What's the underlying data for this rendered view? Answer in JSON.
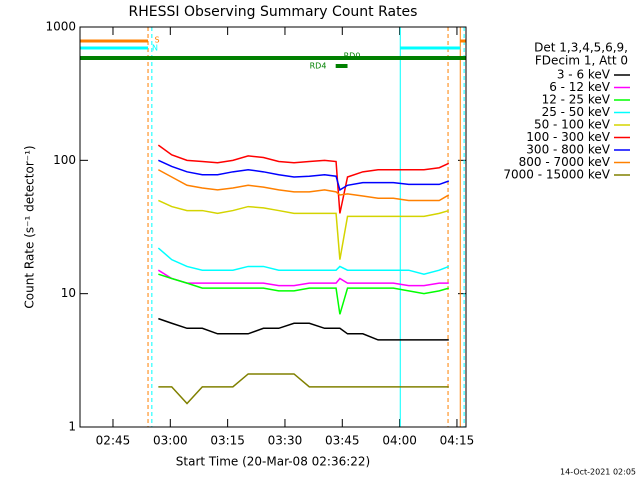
{
  "chart_data": {
    "type": "line",
    "title": "RHESSI Observing Summary Count Rates",
    "x_label": "Start Time (20-Mar-08 02:36:22)",
    "y_label": "Count Rate (s⁻¹ detector⁻¹)",
    "legend_header": [
      "Det 1,3,4,5,6,9,",
      "FDecim 1, Att 0"
    ],
    "timestamp": "14-Oct-2021 02:05",
    "log_y": true,
    "xlim": [
      0,
      101
    ],
    "xticks": [
      {
        "value": 8.63,
        "label": "02:45"
      },
      {
        "value": 23.63,
        "label": "03:00"
      },
      {
        "value": 38.63,
        "label": "03:15"
      },
      {
        "value": 53.63,
        "label": "03:30"
      },
      {
        "value": 68.63,
        "label": "03:45"
      },
      {
        "value": 83.63,
        "label": "04:00"
      },
      {
        "value": 98.63,
        "label": "04:15"
      }
    ],
    "ylim": [
      1,
      1000
    ],
    "yticks": [
      1,
      10,
      100,
      1000
    ],
    "x": [
      20.5,
      24,
      28,
      32,
      36,
      40,
      44,
      48,
      52,
      56,
      60,
      64,
      67,
      68,
      70,
      74,
      78,
      82,
      86,
      90,
      94,
      96.5
    ],
    "series": [
      {
        "name": "3 - 6 keV",
        "color": "#000000",
        "values": [
          6.5,
          6,
          5.5,
          5.5,
          5,
          5,
          5,
          5.5,
          5.5,
          6,
          6,
          5.5,
          5.5,
          5.5,
          5,
          5,
          4.5,
          4.5,
          4.5,
          4.5,
          4.5,
          4.5
        ]
      },
      {
        "name": "6 - 12 keV",
        "color": "#ff00ff",
        "values": [
          15,
          13,
          12,
          12,
          12,
          12,
          12,
          12,
          11.5,
          11.5,
          12,
          12,
          12,
          13,
          12,
          12,
          12,
          12,
          11.5,
          11.5,
          12,
          12
        ]
      },
      {
        "name": "12 - 25 keV",
        "color": "#00ff00",
        "values": [
          14,
          13,
          12,
          11,
          11,
          11,
          11,
          11,
          10.5,
          10.5,
          11,
          11,
          11,
          7,
          11,
          11,
          11,
          11,
          10.5,
          10,
          10.5,
          11
        ]
      },
      {
        "name": "25 - 50 keV",
        "color": "#00ffff",
        "values": [
          22,
          18,
          16,
          15,
          15,
          15,
          16,
          16,
          15,
          15,
          15,
          15,
          15,
          16,
          15,
          15,
          15,
          15,
          15,
          14,
          15,
          16
        ]
      },
      {
        "name": "50 - 100 keV",
        "color": "#d4d400",
        "values": [
          50,
          45,
          42,
          42,
          40,
          42,
          45,
          44,
          42,
          40,
          40,
          40,
          40,
          18,
          38,
          38,
          38,
          38,
          38,
          38,
          40,
          42
        ]
      },
      {
        "name": "100 - 300 keV",
        "color": "#ff0000",
        "values": [
          130,
          110,
          100,
          98,
          96,
          100,
          108,
          105,
          98,
          96,
          98,
          100,
          98,
          40,
          75,
          82,
          85,
          85,
          85,
          85,
          88,
          95
        ]
      },
      {
        "name": "300 - 800 keV",
        "color": "#0000ff",
        "values": [
          100,
          90,
          82,
          78,
          78,
          82,
          85,
          82,
          78,
          75,
          76,
          78,
          76,
          60,
          65,
          68,
          68,
          68,
          66,
          66,
          66,
          70
        ]
      },
      {
        "name": "800 - 7000 keV",
        "color": "#ff8000",
        "values": [
          85,
          75,
          65,
          62,
          60,
          62,
          65,
          63,
          60,
          58,
          58,
          60,
          58,
          55,
          56,
          54,
          52,
          52,
          50,
          50,
          50,
          55
        ]
      },
      {
        "name": "7000 - 15000 keV",
        "color": "#808000",
        "values": [
          2,
          2,
          1.5,
          2,
          2,
          2,
          2.5,
          2.5,
          2.5,
          2.5,
          2,
          2,
          2,
          2,
          2,
          2,
          2,
          2,
          2,
          2,
          2,
          2
        ]
      }
    ],
    "flags": [
      {
        "label": "S",
        "color": "#ff8000",
        "spans": [
          [
            0,
            17.8
          ],
          [
            99.5,
            101
          ]
        ]
      },
      {
        "label": "N",
        "color": "#00ffff",
        "spans": [
          [
            0,
            17.8
          ],
          [
            83.8,
            99.5
          ]
        ]
      },
      {
        "label": "RD0",
        "color": "#008000",
        "spans": [
          [
            0,
            101
          ]
        ]
      },
      {
        "label": "RD4",
        "color": "#008000",
        "spans": [
          [
            66.9,
            70
          ]
        ]
      }
    ],
    "markers": [
      {
        "x": 0,
        "color": "#00ffff",
        "dashed": false
      },
      {
        "x": 17.8,
        "color": "#ff8000",
        "dashed": true
      },
      {
        "x": 18.8,
        "color": "#00ffff",
        "dashed": true
      },
      {
        "x": 83.8,
        "color": "#00ffff",
        "dashed": false
      },
      {
        "x": 96.3,
        "color": "#ff8000",
        "dashed": true
      },
      {
        "x": 99.5,
        "color": "#ff8000",
        "dashed": false
      },
      {
        "x": 100.5,
        "color": "#00ffff",
        "dashed": true
      }
    ]
  }
}
